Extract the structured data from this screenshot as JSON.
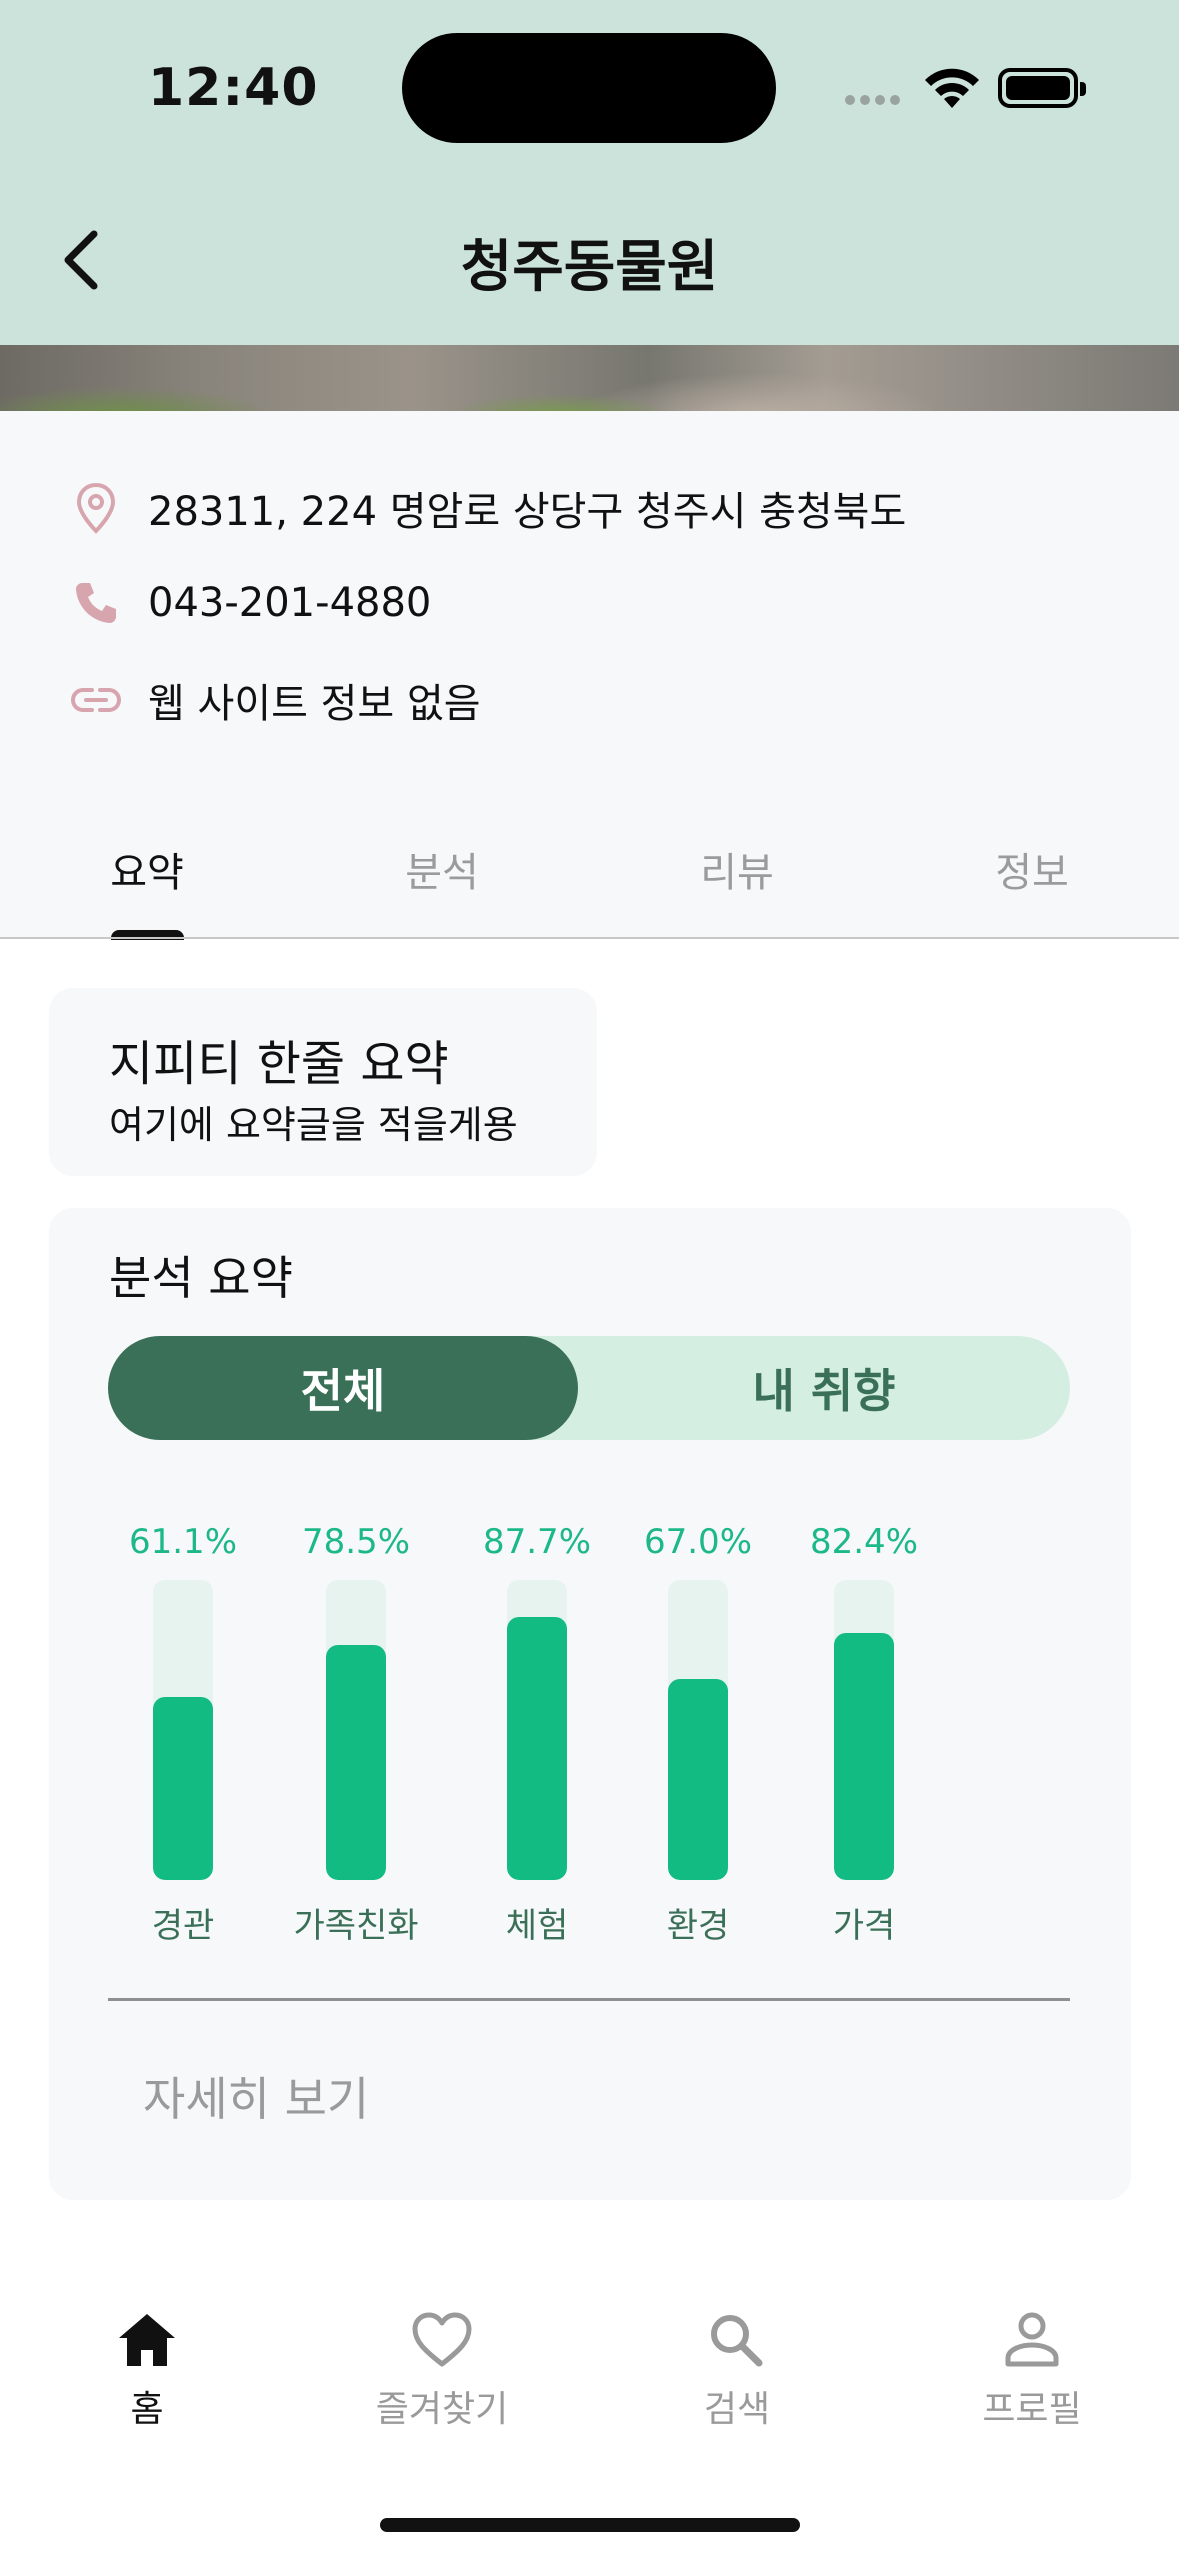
{
  "status_bar": {
    "time": "12:40"
  },
  "header": {
    "title": "청주동물원"
  },
  "info": {
    "address": "28311, 224 명암로 상당구 청주시 충청북도",
    "phone": "043-201-4880",
    "website": "웹 사이트 정보 없음"
  },
  "tabs": [
    {
      "label": "요약",
      "active": true
    },
    {
      "label": "분석",
      "active": false
    },
    {
      "label": "리뷰",
      "active": false
    },
    {
      "label": "정보",
      "active": false
    }
  ],
  "gpt_summary": {
    "title": "지피티 한줄 요약",
    "body": "여기에 요약글을 적을게용"
  },
  "analysis": {
    "title": "분석 요약",
    "segments": [
      {
        "label": "전체",
        "active": true
      },
      {
        "label": "내 취향",
        "active": false
      }
    ],
    "detail_link": "자세히 보기"
  },
  "chart_data": {
    "type": "bar",
    "categories": [
      "경관",
      "가족친화",
      "체험",
      "환경",
      "가격"
    ],
    "values": [
      61.1,
      78.5,
      87.7,
      67.0,
      82.4
    ],
    "value_labels": [
      "61.1%",
      "78.5%",
      "87.7%",
      "67.0%",
      "82.4%"
    ],
    "ylim": [
      0,
      100
    ],
    "title": "",
    "xlabel": "",
    "ylabel": ""
  },
  "bottom_nav": [
    {
      "label": "홈",
      "icon": "home-icon",
      "active": true
    },
    {
      "label": "즐겨찾기",
      "icon": "heart-icon",
      "active": false
    },
    {
      "label": "검색",
      "icon": "search-icon",
      "active": false
    },
    {
      "label": "프로필",
      "icon": "profile-icon",
      "active": false
    }
  ],
  "colors": {
    "header_bg": "#CCE3DC",
    "accent_dark": "#3B7058",
    "accent_light": "#D5EEE2",
    "bar_fill": "#12BB82",
    "info_icon": "#D7A5AE"
  }
}
